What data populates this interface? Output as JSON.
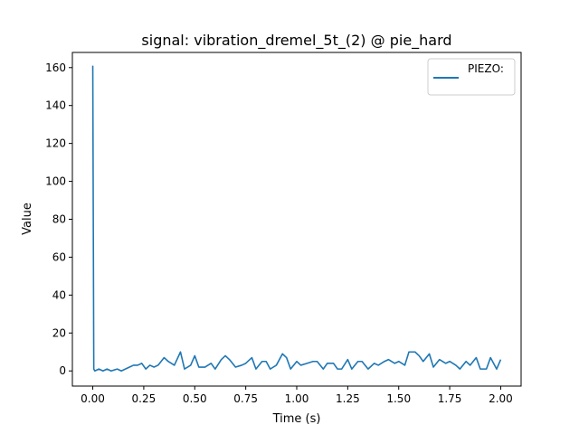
{
  "chart_data": {
    "type": "line",
    "title": "signal: vibration_dremel_5t_(2) @ pie_hard",
    "xlabel": "Time (s)",
    "ylabel": "Value",
    "xlim": [
      -0.1,
      2.1
    ],
    "ylim": [
      -8,
      168
    ],
    "xticks": [
      0.0,
      0.25,
      0.5,
      0.75,
      1.0,
      1.25,
      1.5,
      1.75,
      2.0
    ],
    "xtick_labels": [
      "0.00",
      "0.25",
      "0.50",
      "0.75",
      "1.00",
      "1.25",
      "1.50",
      "1.75",
      "2.00"
    ],
    "yticks": [
      0,
      20,
      40,
      60,
      80,
      100,
      120,
      140,
      160
    ],
    "ytick_labels": [
      "0",
      "20",
      "40",
      "60",
      "80",
      "100",
      "120",
      "140",
      "160"
    ],
    "grid": false,
    "legend": {
      "placement": "top-right"
    },
    "series": [
      {
        "name": "PIEZO:",
        "color": "#1f77b4",
        "x": [
          0.0,
          0.005,
          0.01,
          0.03,
          0.05,
          0.07,
          0.09,
          0.12,
          0.14,
          0.16,
          0.18,
          0.2,
          0.22,
          0.24,
          0.26,
          0.28,
          0.3,
          0.32,
          0.35,
          0.37,
          0.4,
          0.43,
          0.45,
          0.48,
          0.5,
          0.52,
          0.55,
          0.58,
          0.6,
          0.63,
          0.65,
          0.67,
          0.7,
          0.73,
          0.75,
          0.78,
          0.8,
          0.83,
          0.85,
          0.87,
          0.9,
          0.93,
          0.95,
          0.97,
          1.0,
          1.02,
          1.05,
          1.08,
          1.1,
          1.13,
          1.15,
          1.18,
          1.2,
          1.22,
          1.25,
          1.27,
          1.3,
          1.32,
          1.35,
          1.38,
          1.4,
          1.43,
          1.45,
          1.48,
          1.5,
          1.53,
          1.55,
          1.58,
          1.6,
          1.62,
          1.65,
          1.67,
          1.7,
          1.73,
          1.75,
          1.78,
          1.8,
          1.83,
          1.85,
          1.88,
          1.9,
          1.93,
          1.95,
          1.98,
          2.0
        ],
        "y": [
          161,
          1,
          0,
          1,
          0,
          1,
          0,
          1,
          0,
          1,
          2,
          3,
          3,
          4,
          1,
          3,
          2,
          3,
          7,
          5,
          3,
          10,
          1,
          3,
          8,
          2,
          2,
          4,
          1,
          6,
          8,
          6,
          2,
          3,
          4,
          7,
          1,
          5,
          5,
          1,
          3,
          9,
          7,
          1,
          5,
          3,
          4,
          5,
          5,
          1,
          4,
          4,
          1,
          1,
          6,
          1,
          5,
          5,
          1,
          4,
          3,
          5,
          6,
          4,
          5,
          3,
          10,
          10,
          8,
          5,
          9,
          2,
          6,
          4,
          5,
          3,
          1,
          5,
          3,
          7,
          1,
          1,
          7,
          1,
          6
        ]
      }
    ]
  }
}
